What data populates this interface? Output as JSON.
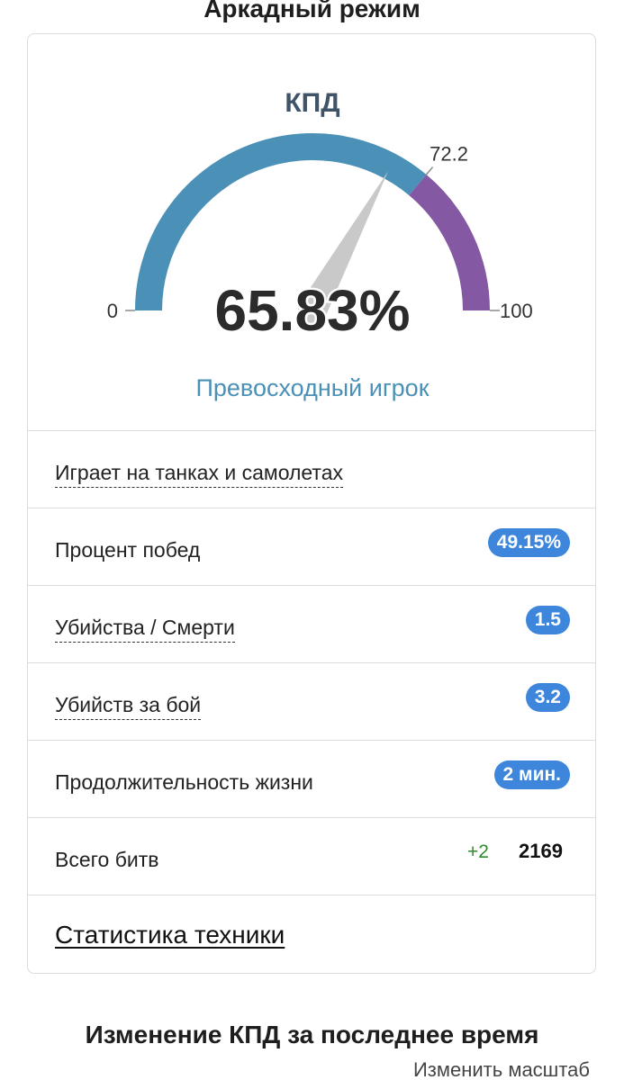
{
  "header": {
    "title": "Аркадный режим"
  },
  "gauge": {
    "label": "КПД",
    "value_text": "65.83%",
    "value": 65.83,
    "min_label": "0",
    "max_label": "100",
    "min": 0,
    "max": 100,
    "threshold_label": "72.2",
    "threshold": 72.2,
    "rating": "Превосходный игрок",
    "colors": {
      "low_segment": "#4a90b7",
      "high_segment": "#8458a3",
      "needle": "#c9c9c9",
      "value_text": "#2b2b2b"
    }
  },
  "stats": {
    "plays_label": "Играет на танках и самолетах",
    "winrate_label": "Процент побед",
    "winrate_value": "49.15%",
    "kd_label": "Убийства / Смерти",
    "kd_value": "1.5",
    "kills_per_battle_label": "Убийств за бой",
    "kills_per_battle_value": "3.2",
    "lifespan_label": "Продолжительность жизни",
    "lifespan_value": "2 мин.",
    "battles_label": "Всего битв",
    "battles_delta": "+2",
    "battles_total": "2169",
    "vehicle_stats_link": "Статистика техники"
  },
  "recent": {
    "title": "Изменение КПД за последнее время",
    "scale_link": "Изменить масштаб"
  }
}
